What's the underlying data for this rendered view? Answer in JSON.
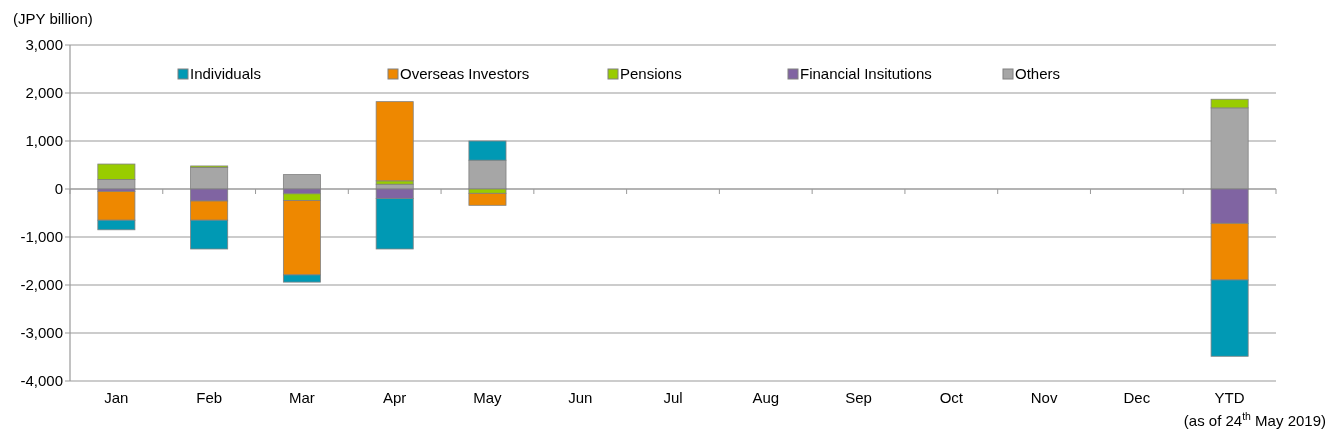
{
  "chart_data": {
    "type": "bar",
    "stacked": true,
    "ylabel": "(JPY billion)",
    "categories": [
      "Jan",
      "Feb",
      "Mar",
      "Apr",
      "May",
      "Jun",
      "Jul",
      "Aug",
      "Sep",
      "Oct",
      "Nov",
      "Dec",
      "YTD"
    ],
    "series": [
      {
        "name": "Others",
        "color": "#a6a6a6",
        "values": [
          200,
          450,
          300,
          100,
          600,
          null,
          null,
          null,
          null,
          null,
          null,
          null,
          1690
        ]
      },
      {
        "name": "Financial Insitutions",
        "color": "#8064a2",
        "values": [
          -50,
          -250,
          -100,
          -200,
          null,
          null,
          null,
          null,
          null,
          null,
          null,
          null,
          -715
        ]
      },
      {
        "name": "Pensions",
        "color": "#99cc00",
        "values": [
          320,
          30,
          -140,
          70,
          -90,
          null,
          null,
          null,
          null,
          null,
          null,
          null,
          180
        ]
      },
      {
        "name": "Overseas Investors",
        "color": "#ee8800",
        "values": [
          -600,
          -400,
          -1550,
          1650,
          -250,
          null,
          null,
          null,
          null,
          null,
          null,
          null,
          -1180
        ]
      },
      {
        "name": "Individuals",
        "color": "#0099b4",
        "values": [
          -200,
          -600,
          -150,
          -1050,
          400,
          null,
          null,
          null,
          null,
          null,
          null,
          null,
          -1590
        ]
      }
    ],
    "ylim": [
      -4000,
      3000
    ],
    "yticks": [
      {
        "value": -4000,
        "label": "-4,000"
      },
      {
        "value": -3000,
        "label": "-3,000"
      },
      {
        "value": -2000,
        "label": "-2,000"
      },
      {
        "value": -1000,
        "label": "-1,000"
      },
      0,
      {
        "value": 1000,
        "label": "1,000"
      },
      {
        "value": 2000,
        "label": "2,000"
      },
      {
        "value": 3000,
        "label": "3,000"
      }
    ],
    "grid": "y",
    "legend": "top",
    "annotations": [
      "(as of 24$^{th}$ May 2019)"
    ]
  }
}
